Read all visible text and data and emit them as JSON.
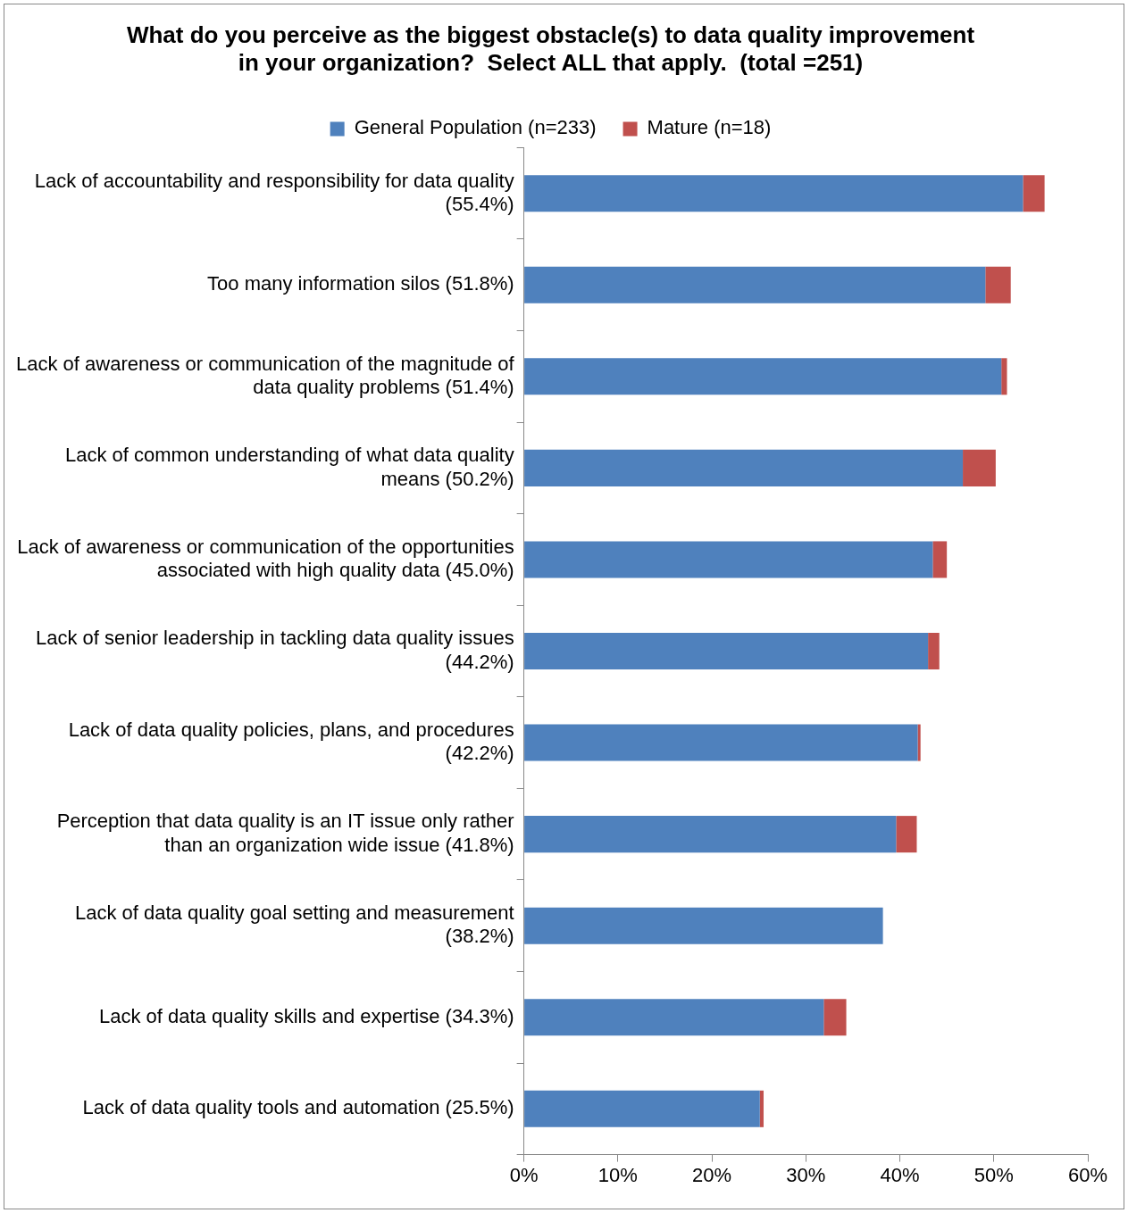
{
  "chart_data": {
    "type": "bar",
    "orientation": "horizontal",
    "stacked": true,
    "title": "What do you perceive as the biggest obstacle(s) to data quality improvement in your organization?  Select ALL that apply.  (total =251)",
    "categories": [
      "Lack of accountability and responsibility for data quality (55.4%)",
      "Too many information silos (51.8%)",
      "Lack of awareness or communication of the magnitude of data quality problems (51.4%)",
      "Lack of common understanding of what data quality means (50.2%)",
      "Lack of awareness or communication of the opportunities associated with high quality data (45.0%)",
      "Lack of senior leadership in tackling data quality issues (44.2%)",
      "Lack of data quality policies, plans, and procedures (42.2%)",
      "Perception that data quality is an IT issue only rather than an organization wide issue (41.8%)",
      "Lack of data quality goal setting and measurement (38.2%)",
      "Lack of data quality skills and expertise (34.3%)",
      "Lack of data quality tools and automation (25.5%)"
    ],
    "series": [
      {
        "name": "General Population (n=233)",
        "color": "#4f81bd",
        "values": [
          53.1,
          49.1,
          50.8,
          46.7,
          43.5,
          43.0,
          41.9,
          39.6,
          38.2,
          31.9,
          25.1
        ]
      },
      {
        "name": "Mature (n=18)",
        "color": "#c0504d",
        "values": [
          2.3,
          2.7,
          0.6,
          3.5,
          1.5,
          1.2,
          0.3,
          2.2,
          0,
          2.4,
          0.4
        ]
      }
    ],
    "xlim": [
      0,
      60
    ],
    "xticks": [
      {
        "value": 0,
        "label": "0%"
      },
      {
        "value": 10,
        "label": "10%"
      },
      {
        "value": 20,
        "label": "20%"
      },
      {
        "value": 30,
        "label": "30%"
      },
      {
        "value": 40,
        "label": "40%"
      },
      {
        "value": 50,
        "label": "50%"
      },
      {
        "value": 60,
        "label": "60%"
      }
    ],
    "grid": false,
    "legend": "top"
  }
}
